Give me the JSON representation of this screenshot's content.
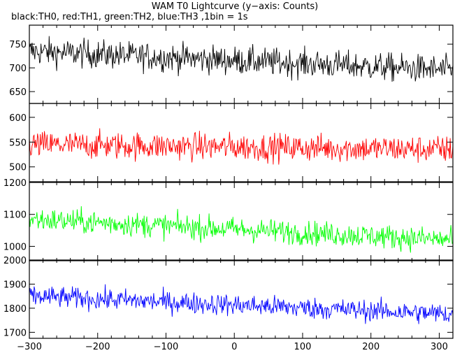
{
  "title": "WAM T0 Lightcurve (y−axis: Counts)",
  "subtitle": "black:TH0, red:TH1, green:TH2, blue:TH3 ,1bin = 1s",
  "chart_data": {
    "type": "line",
    "x_range": [
      -300,
      320
    ],
    "x_ticks": [
      -300,
      -200,
      -100,
      0,
      100,
      200,
      300
    ],
    "bin_seconds": 1,
    "panels": [
      {
        "series_name": "TH0",
        "color": "#000000",
        "ylim": [
          625,
          790
        ],
        "y_ticks": [
          650,
          700,
          750
        ],
        "trend_start": 735,
        "trend_end": 695,
        "noise_amplitude": 30
      },
      {
        "series_name": "TH1",
        "color": "#ff0000",
        "ylim": [
          470,
          628
        ],
        "y_ticks": [
          500,
          550,
          600
        ],
        "trend_start": 545,
        "trend_end": 535,
        "noise_amplitude": 28
      },
      {
        "series_name": "TH2",
        "color": "#00ff00",
        "ylim": [
          955,
          1200
        ],
        "y_ticks": [
          1000,
          1100,
          1200
        ],
        "trend_start": 1085,
        "trend_end": 1020,
        "noise_amplitude": 38
      },
      {
        "series_name": "TH3",
        "color": "#0000ff",
        "ylim": [
          1675,
          2000
        ],
        "y_ticks": [
          1700,
          1800,
          1900,
          2000
        ],
        "trend_start": 1850,
        "trend_end": 1775,
        "noise_amplitude": 45
      }
    ]
  }
}
